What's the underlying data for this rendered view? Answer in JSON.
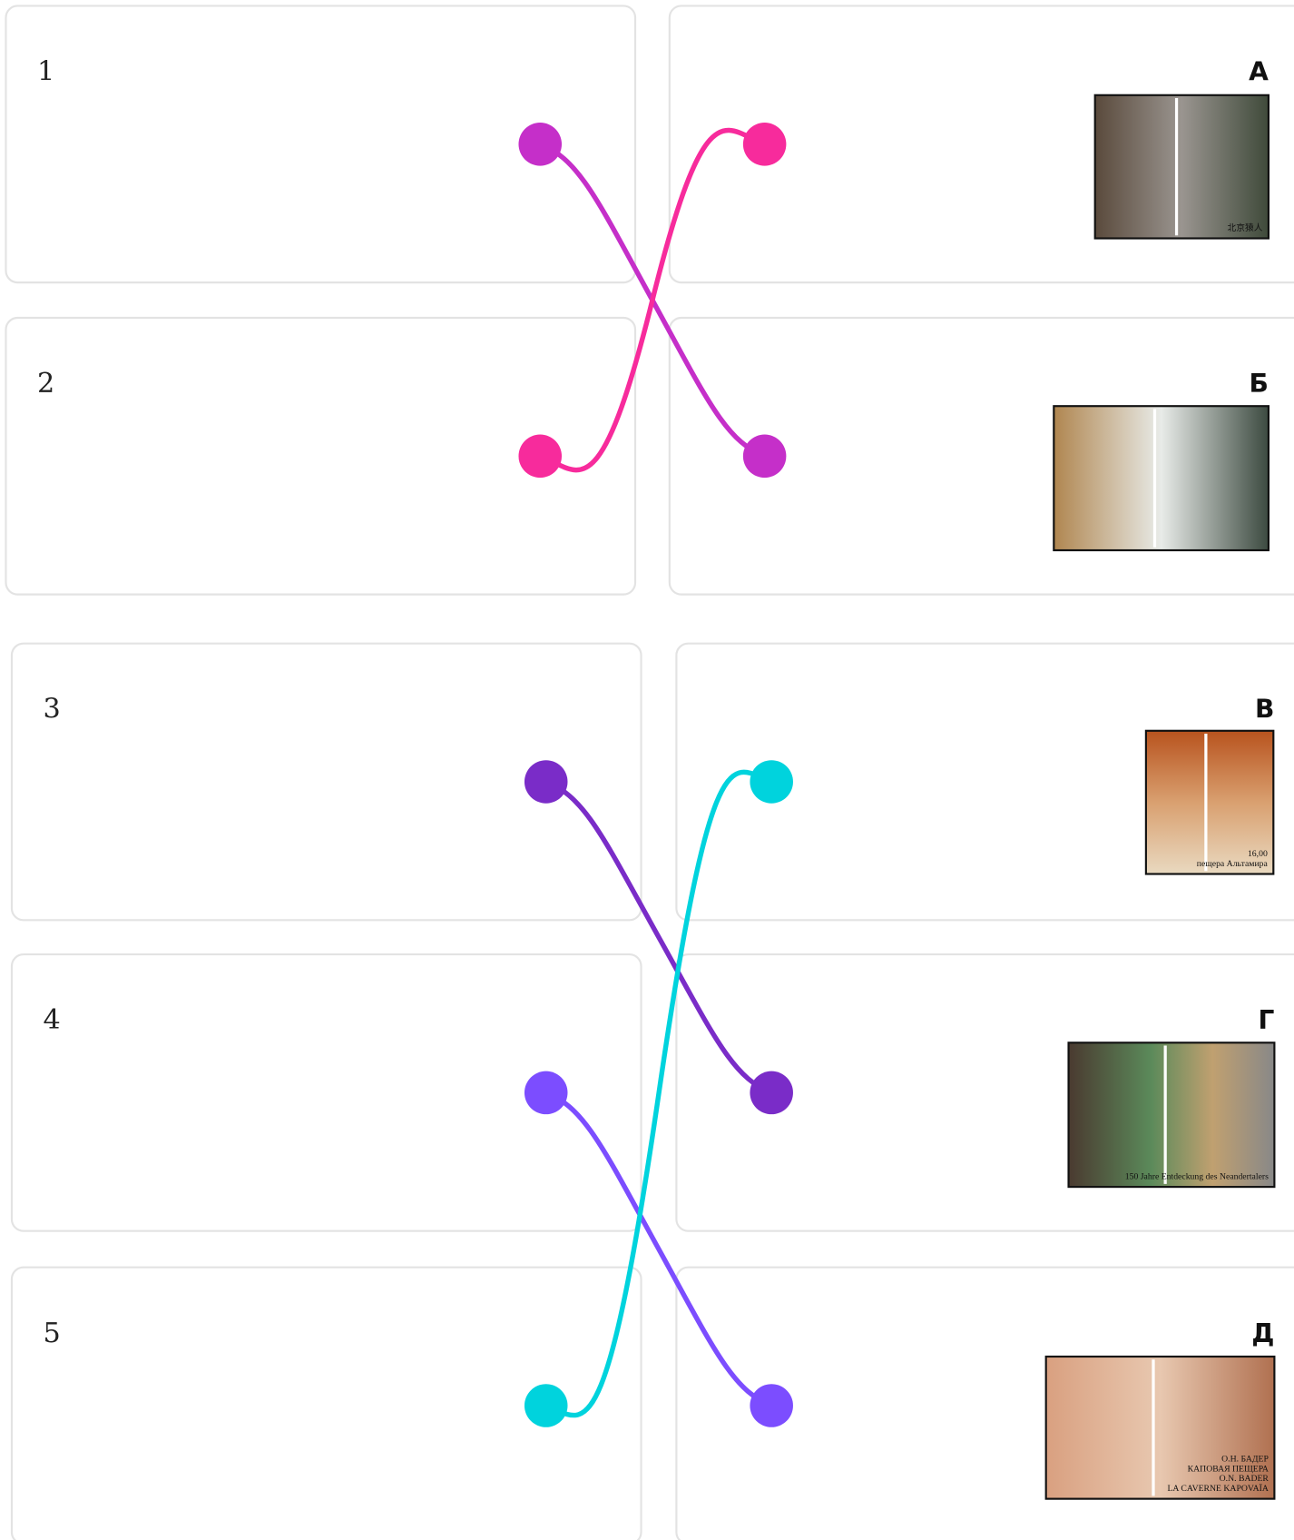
{
  "left": [
    {
      "label": "1"
    },
    {
      "label": "2"
    },
    {
      "label": "3"
    },
    {
      "label": "4"
    },
    {
      "label": "5"
    }
  ],
  "right": [
    {
      "label": "А",
      "image_text": [
        "北京猿人"
      ]
    },
    {
      "label": "Б",
      "image_text": []
    },
    {
      "label": "В",
      "image_text": [
        "16,00",
        "пещера Альтамира"
      ]
    },
    {
      "label": "Г",
      "image_text": [
        "150 Jahre Entdeckung des Neandertalers"
      ]
    },
    {
      "label": "Д",
      "image_text": [
        "О.Н. БАДЕР",
        "КАПОВАЯ ПЕЩЕРА",
        "O.N. BADER",
        "LA CAVERNE KAPOVAÏA"
      ]
    }
  ],
  "connections": [
    {
      "from": "1",
      "to": "Б",
      "color": "#c52fc9"
    },
    {
      "from": "2",
      "to": "А",
      "color": "#f72b9c"
    },
    {
      "from": "3",
      "to": "Г",
      "color": "#7a2cc8"
    },
    {
      "from": "4",
      "to": "Д",
      "color": "#7c4dff"
    },
    {
      "from": "5",
      "to": "В",
      "color": "#00d3dd"
    }
  ]
}
